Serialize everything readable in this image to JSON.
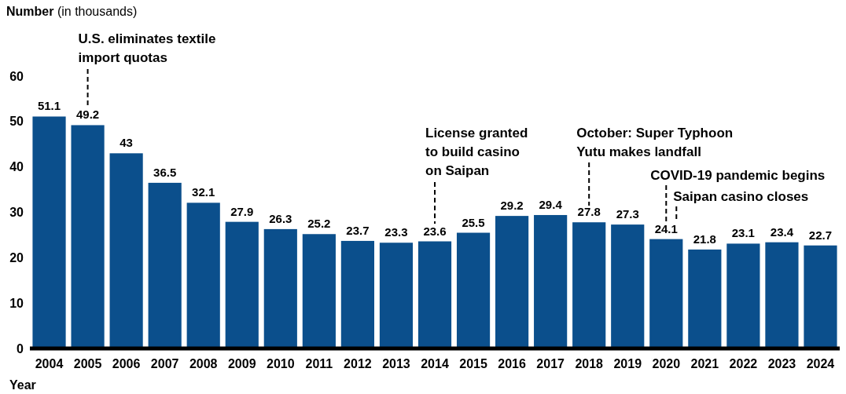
{
  "chart_data": {
    "type": "bar",
    "ylabel": "Number (in thousands)",
    "xlabel": "Year",
    "categories": [
      "2004",
      "2005",
      "2006",
      "2007",
      "2008",
      "2009",
      "2010",
      "2011",
      "2012",
      "2013",
      "2014",
      "2015",
      "2016",
      "2017",
      "2018",
      "2019",
      "2020",
      "2021",
      "2022",
      "2023",
      "2024"
    ],
    "values": [
      51.1,
      49.2,
      43,
      36.5,
      32.1,
      27.9,
      26.3,
      25.2,
      23.7,
      23.3,
      23.6,
      25.5,
      29.2,
      29.4,
      27.8,
      27.3,
      24.1,
      21.8,
      23.1,
      23.4,
      22.7
    ],
    "color": "#0b4f8c",
    "ylim": [
      0,
      60
    ],
    "yticks": [
      0,
      10,
      20,
      30,
      40,
      50,
      60
    ],
    "data_labels": true,
    "grid": false,
    "annotations": [
      "U.S. eliminates textile import quotas",
      "License granted to build casino on Saipan",
      "October: Super Typhoon Yutu makes landfall",
      "COVID-19 pandemic begins",
      "Saipan casino closes"
    ]
  }
}
